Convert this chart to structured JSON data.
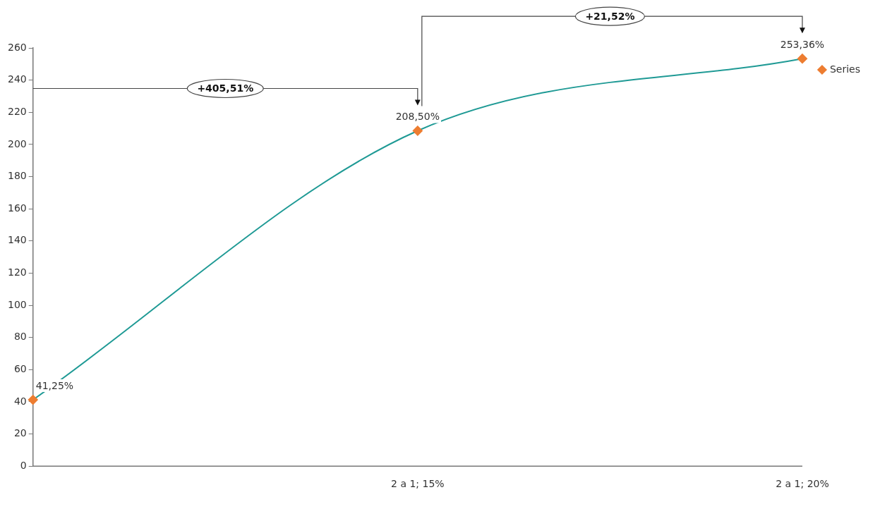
{
  "chart_data": {
    "type": "line",
    "categories": [
      null,
      "2 a 1; 15%",
      "2 a 1; 20%"
    ],
    "series": [
      {
        "name": "Series",
        "color": "#1f9a95",
        "values": [
          41.25,
          208.5,
          253.36
        ],
        "colors": [
          "#ed7d31",
          "#ed7d31",
          "#ed7d31"
        ],
        "value_labels": [
          "41,25%",
          "208,50%",
          "253,36%"
        ]
      }
    ],
    "marker": "diamond",
    "ylim": [
      0,
      260
    ],
    "yticks": [
      0,
      20,
      40,
      60,
      80,
      100,
      120,
      140,
      160,
      180,
      200,
      220,
      240,
      260
    ],
    "grid": false,
    "legend": "right",
    "annotations": [
      "+405,51%",
      "+21,52%"
    ]
  }
}
